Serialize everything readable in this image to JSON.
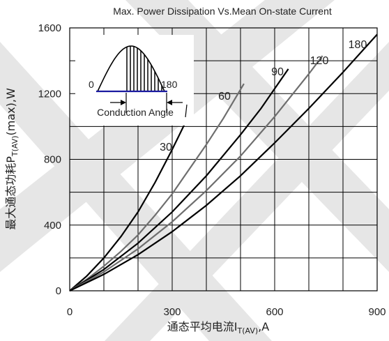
{
  "chart_data": {
    "type": "line",
    "title": "Max. Power Dissipation Vs.Mean On-state Current",
    "xlabel": "通态平均电流I",
    "xlabel_sub": "T(AV)",
    "xlabel_unit": ",A",
    "ylabel": "最大通态功耗P",
    "ylabel_sub": "T(AV)",
    "ylabel_unit": "(max),W",
    "xlim": [
      0,
      900
    ],
    "ylim": [
      0,
      1600
    ],
    "xticks": [
      0,
      300,
      600,
      900
    ],
    "yticks": [
      0,
      400,
      800,
      1200,
      1600
    ],
    "grid": true,
    "series": [
      {
        "name": "30",
        "color": "#000000",
        "x": [
          0,
          50,
          100,
          150,
          200,
          250,
          300,
          340
        ],
        "y": [
          0,
          90,
          200,
          330,
          480,
          660,
          860,
          1030
        ]
      },
      {
        "name": "60",
        "color": "#6e6e6e",
        "x": [
          0,
          50,
          100,
          150,
          200,
          250,
          300,
          350,
          400,
          450,
          510
        ],
        "y": [
          0,
          70,
          150,
          240,
          340,
          460,
          590,
          740,
          890,
          1050,
          1260
        ]
      },
      {
        "name": "90",
        "color": "#000000",
        "x": [
          0,
          100,
          200,
          300,
          400,
          500,
          560,
          640
        ],
        "y": [
          0,
          130,
          290,
          480,
          700,
          950,
          1110,
          1350
        ]
      },
      {
        "name": "120",
        "color": "#6e6e6e",
        "x": [
          0,
          100,
          200,
          300,
          400,
          500,
          600,
          700,
          740
        ],
        "y": [
          0,
          115,
          255,
          420,
          610,
          820,
          1060,
          1320,
          1430
        ]
      },
      {
        "name": "180",
        "color": "#000000",
        "x": [
          0,
          100,
          200,
          300,
          400,
          500,
          600,
          700,
          800,
          900
        ],
        "y": [
          0,
          100,
          220,
          360,
          520,
          700,
          900,
          1110,
          1330,
          1560
        ]
      }
    ],
    "inset": {
      "start_label": "0",
      "end_label": "180",
      "caption": "Conduction Angle"
    }
  },
  "colors": {
    "watermark": "#e6e6e6",
    "grid": "#000000",
    "inset_base": "#1a1aa0"
  }
}
